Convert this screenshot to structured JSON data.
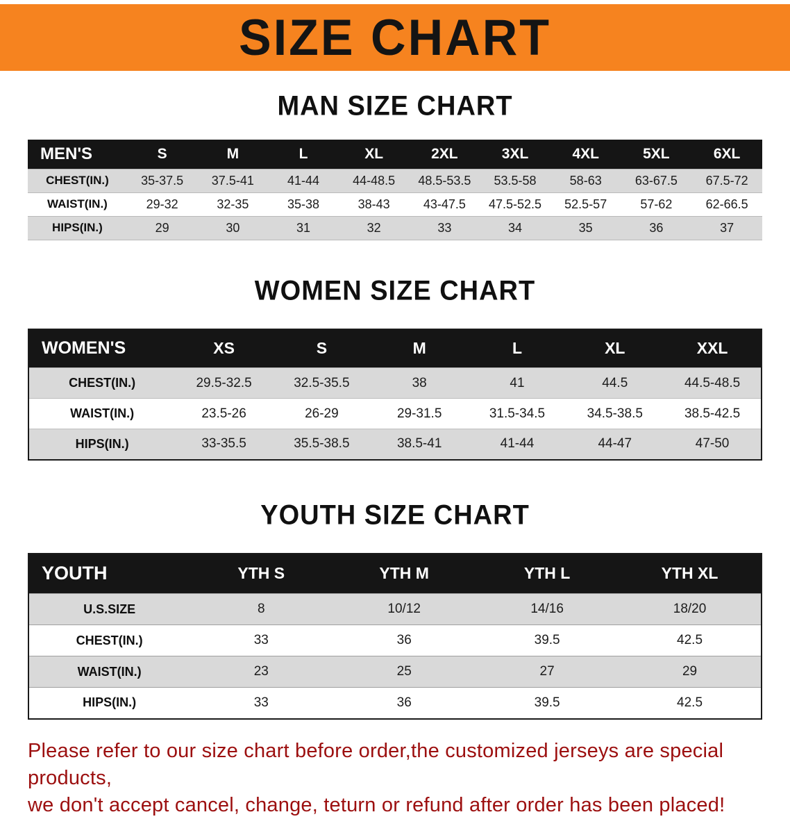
{
  "banner": {
    "title": "SIZE CHART",
    "bg_color": "#f6831f",
    "text_color": "#141414"
  },
  "sections": [
    {
      "id": "men",
      "heading": "MAN SIZE CHART",
      "table": {
        "header": [
          "MEN'S",
          "S",
          "M",
          "L",
          "XL",
          "2XL",
          "3XL",
          "4XL",
          "5XL",
          "6XL"
        ],
        "rows": [
          {
            "label": "CHEST(IN.)",
            "values": [
              "35-37.5",
              "37.5-41",
              "41-44",
              "44-48.5",
              "48.5-53.5",
              "53.5-58",
              "58-63",
              "63-67.5",
              "67.5-72"
            ]
          },
          {
            "label": "WAIST(IN.)",
            "values": [
              "29-32",
              "32-35",
              "35-38",
              "38-43",
              "43-47.5",
              "47.5-52.5",
              "52.5-57",
              "57-62",
              "62-66.5"
            ]
          },
          {
            "label": "HIPS(IN.)",
            "values": [
              "29",
              "30",
              "31",
              "32",
              "33",
              "34",
              "35",
              "36",
              "37"
            ]
          }
        ]
      }
    },
    {
      "id": "women",
      "heading": "WOMEN SIZE CHART",
      "table": {
        "header": [
          "WOMEN'S",
          "XS",
          "S",
          "M",
          "L",
          "XL",
          "XXL"
        ],
        "rows": [
          {
            "label": "CHEST(IN.)",
            "values": [
              "29.5-32.5",
              "32.5-35.5",
              "38",
              "41",
              "44.5",
              "44.5-48.5"
            ]
          },
          {
            "label": "WAIST(IN.)",
            "values": [
              "23.5-26",
              "26-29",
              "29-31.5",
              "31.5-34.5",
              "34.5-38.5",
              "38.5-42.5"
            ]
          },
          {
            "label": "HIPS(IN.)",
            "values": [
              "33-35.5",
              "35.5-38.5",
              "38.5-41",
              "41-44",
              "44-47",
              "47-50"
            ]
          }
        ]
      }
    },
    {
      "id": "youth",
      "heading": "YOUTH SIZE CHART",
      "table": {
        "header": [
          "YOUTH",
          "YTH S",
          "YTH M",
          "YTH L",
          "YTH XL"
        ],
        "rows": [
          {
            "label": "U.S.SIZE",
            "values": [
              "8",
              "10/12",
              "14/16",
              "18/20"
            ]
          },
          {
            "label": "CHEST(IN.)",
            "values": [
              "33",
              "36",
              "39.5",
              "42.5"
            ]
          },
          {
            "label": "WAIST(IN.)",
            "values": [
              "23",
              "25",
              "27",
              "29"
            ]
          },
          {
            "label": "HIPS(IN.)",
            "values": [
              "33",
              "36",
              "39.5",
              "42.5"
            ]
          }
        ]
      }
    }
  ],
  "footer": {
    "line1": "Please refer to our size chart before order,the customized jerseys are special products,",
    "line2": "we don't accept cancel, change, teturn or refund after order has been placed!",
    "text_color": "#9c0f0f"
  }
}
